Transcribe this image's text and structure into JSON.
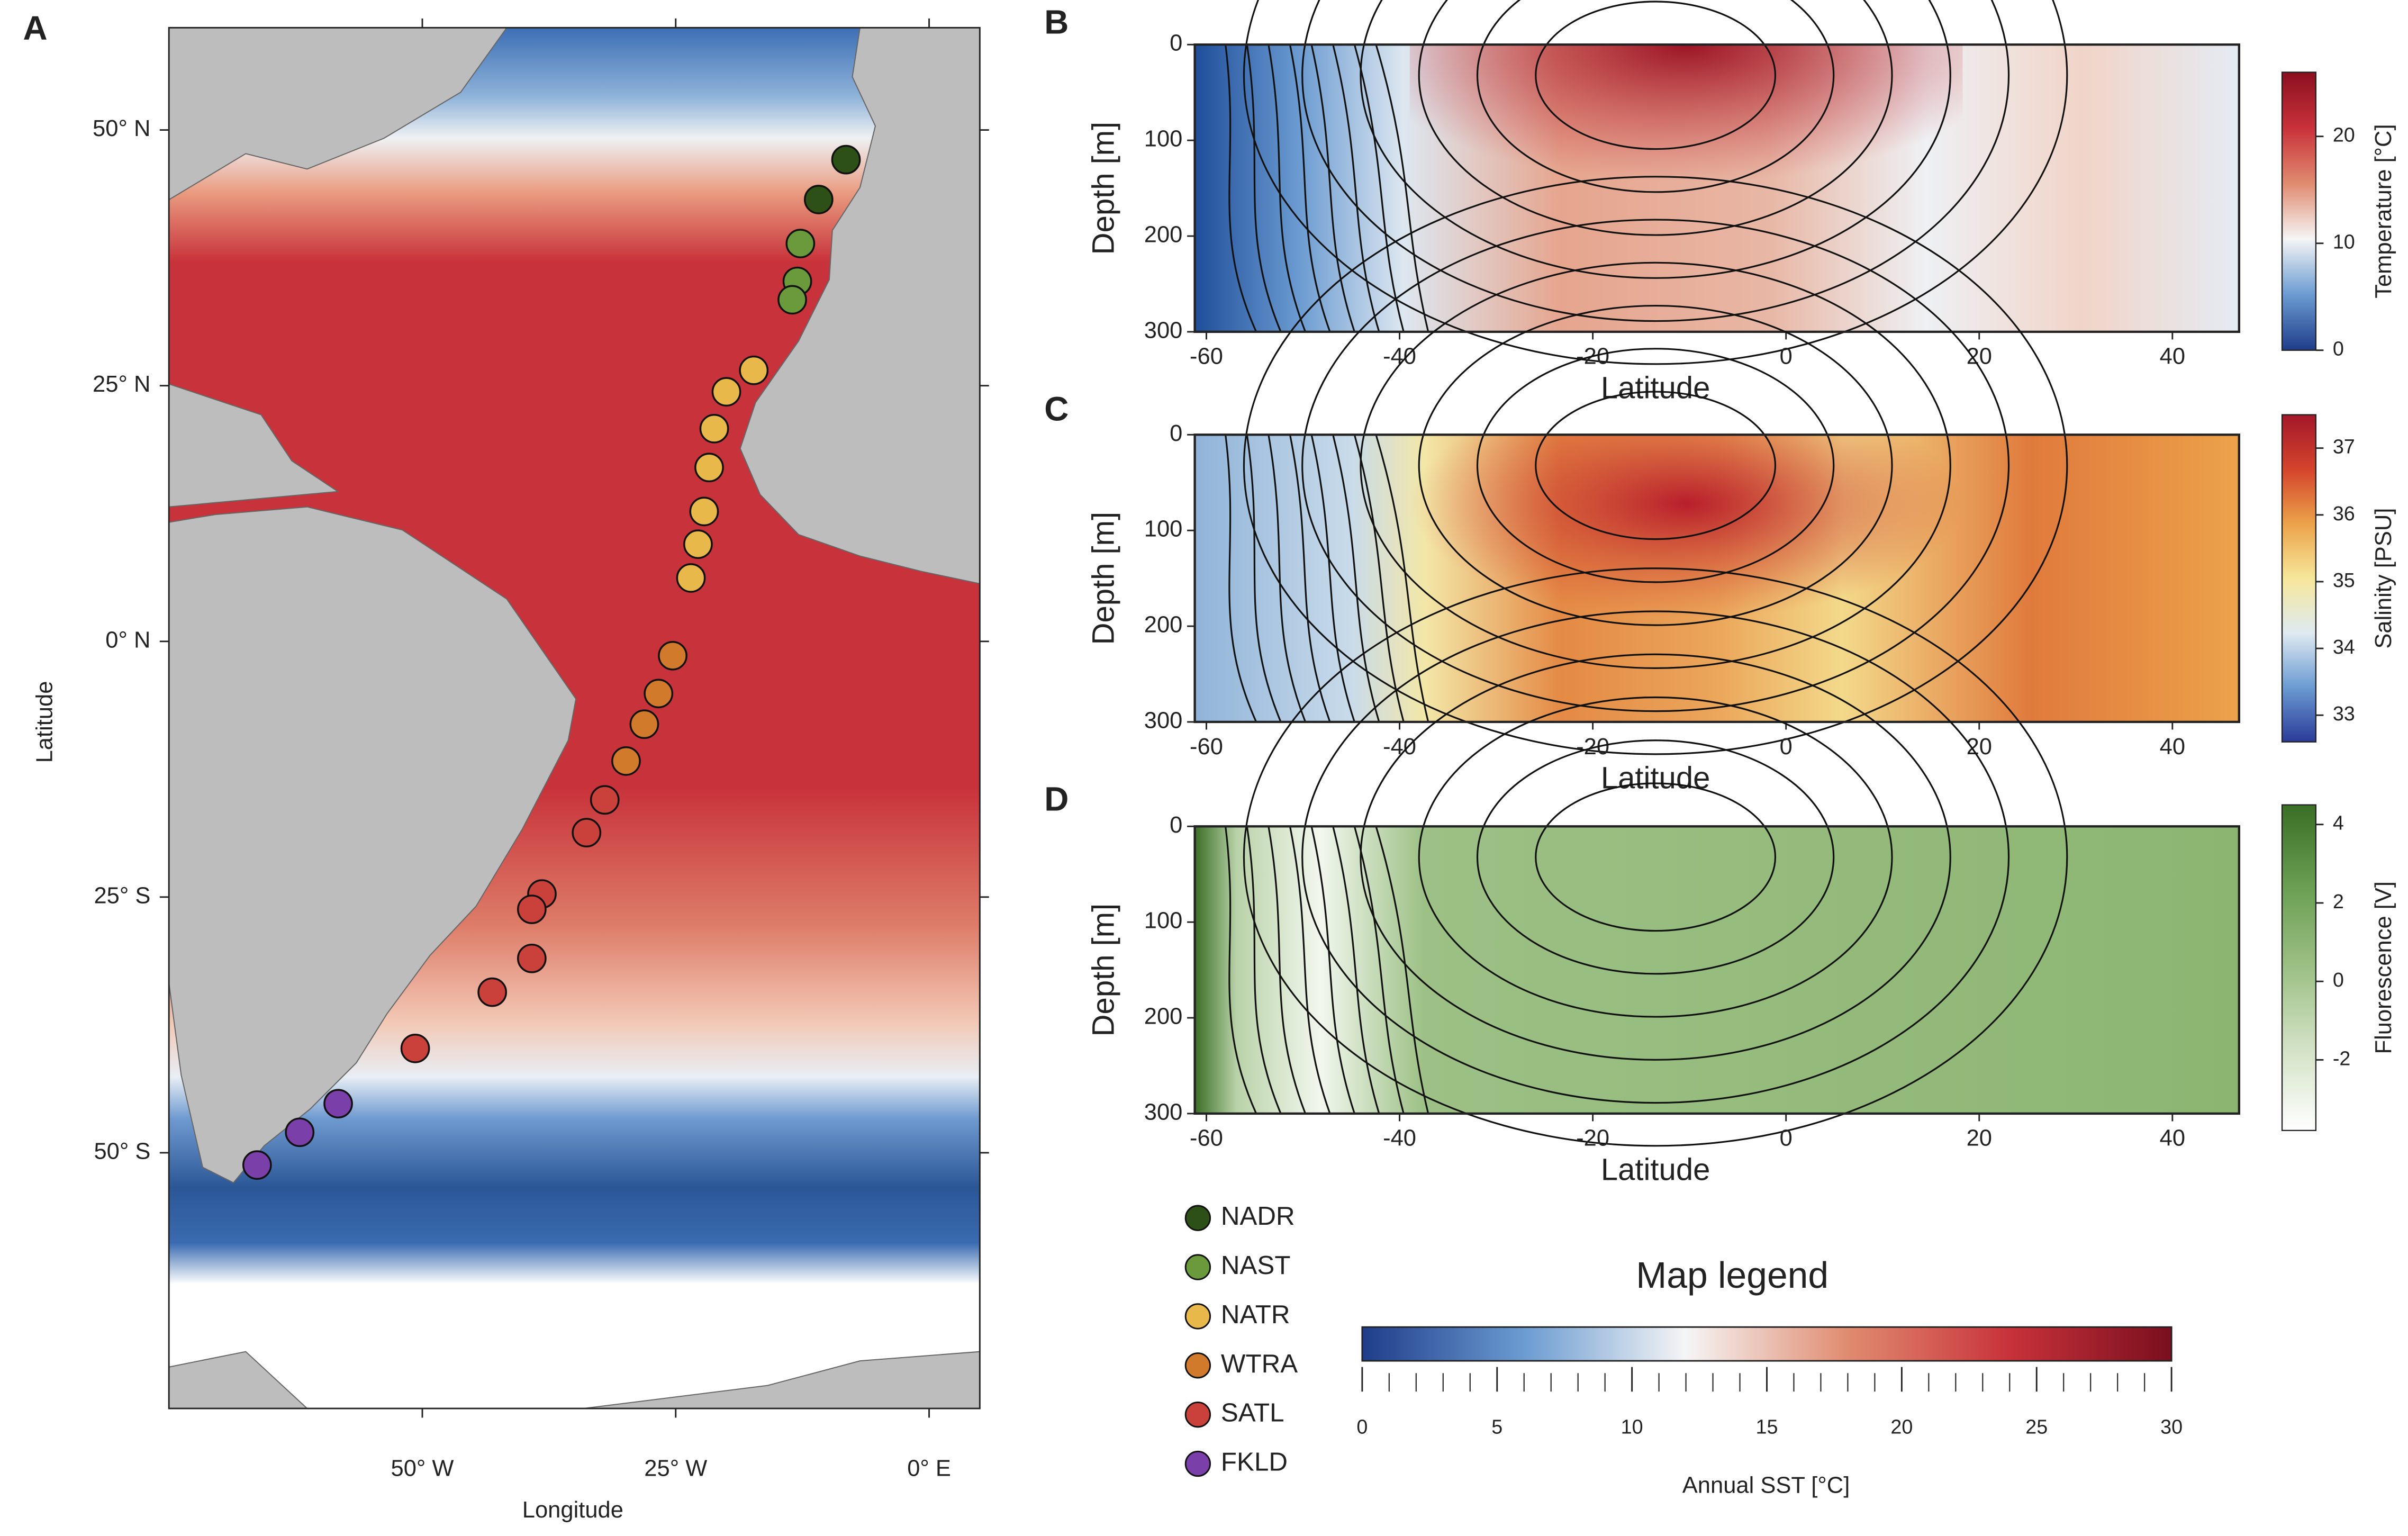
{
  "figure": {
    "panel_labels": [
      "A",
      "B",
      "C",
      "D"
    ]
  },
  "chart_data": [
    {
      "type": "scatter",
      "xlabel": "Longitude",
      "ylabel": "Latitude",
      "xlim": [
        -75,
        5
      ],
      "ylim": [
        -75,
        60
      ],
      "xticks": [
        {
          "value": -50,
          "label": "50° W"
        },
        {
          "value": -25,
          "label": "25° W"
        },
        {
          "value": 0,
          "label": "0° E"
        }
      ],
      "yticks": [
        {
          "value": 50,
          "label": "50° N"
        },
        {
          "value": 25,
          "label": "25° N"
        },
        {
          "value": 0,
          "label": "0° N"
        },
        {
          "value": -25,
          "label": "25° S"
        },
        {
          "value": -50,
          "label": "50° S"
        }
      ],
      "series": [
        {
          "name": "NADR",
          "color": "#2d5016",
          "x": [
            -8.2,
            -10.9
          ],
          "y": [
            47.1,
            43.2
          ]
        },
        {
          "name": "NAST",
          "color": "#6a9a3c",
          "x": [
            -12.7,
            -13,
            -13.5
          ],
          "y": [
            38.9,
            35.2,
            33.4
          ]
        },
        {
          "name": "NATR",
          "color": "#e8b84a",
          "x": [
            -17.3,
            -20,
            -21.2,
            -21.7,
            -22.2,
            -22.8,
            -23.5
          ],
          "y": [
            26.5,
            24.4,
            20.8,
            17.0,
            12.7,
            9.5,
            6.2
          ]
        },
        {
          "name": "WTRA",
          "color": "#d27a2c",
          "x": [
            -25.3,
            -26.7,
            -28.1,
            -29.9
          ],
          "y": [
            -1.4,
            -5.1,
            -8.1,
            -11.7
          ]
        },
        {
          "name": "SATL",
          "color": "#c9413a",
          "x": [
            -32,
            -33.8,
            -38.2,
            -39.2,
            -39.2,
            -43.1,
            -50.7
          ],
          "y": [
            -15.5,
            -18.7,
            -24.7,
            -26.2,
            -31,
            -34.3,
            -39.8
          ]
        },
        {
          "name": "FKLD",
          "color": "#7a3fa8",
          "x": [
            -58.3,
            -62.1,
            -66.3
          ],
          "y": [
            -45.2,
            -48,
            -51.2
          ]
        }
      ]
    },
    {
      "type": "contour",
      "xlabel": "Latitude",
      "ylabel": "Depth [m]",
      "xlim": [
        -61.2,
        46.9
      ],
      "ylim": [
        0,
        300
      ],
      "y_inverted": true,
      "xticks": [
        -60,
        -40,
        -20,
        0,
        20,
        40
      ],
      "yticks": [
        0,
        100,
        200,
        300
      ],
      "colorbar": {
        "label": "Temperature [°C]",
        "clim": [
          0,
          26
        ],
        "ticks": [
          0,
          10,
          20
        ],
        "colormap": [
          "#1f3d8a",
          "#6b9bd1",
          "#f5f5f5",
          "#e08b70",
          "#c8323a",
          "#8b0f1f"
        ]
      }
    },
    {
      "type": "contour",
      "xlabel": "Latitude",
      "ylabel": "Depth [m]",
      "xlim": [
        -61.2,
        46.9
      ],
      "ylim": [
        0,
        300
      ],
      "y_inverted": true,
      "xticks": [
        -60,
        -40,
        -20,
        0,
        20,
        40
      ],
      "yticks": [
        0,
        100,
        200,
        300
      ],
      "colorbar": {
        "label": "Salinity [PSU]",
        "clim": [
          32.6,
          37.5
        ],
        "ticks": [
          33,
          34,
          35,
          36,
          37
        ],
        "colormap": [
          "#2b3b99",
          "#6b9bd1",
          "#dfeaf2",
          "#f6e79a",
          "#eca24a",
          "#d4442c",
          "#a3172a"
        ]
      }
    },
    {
      "type": "contour",
      "xlabel": "Latitude",
      "ylabel": "Depth [m]",
      "xlim": [
        -61.2,
        46.9
      ],
      "ylim": [
        0,
        300
      ],
      "y_inverted": true,
      "xticks": [
        -60,
        -40,
        -20,
        0,
        20,
        40
      ],
      "yticks": [
        0,
        100,
        200,
        300
      ],
      "colorbar": {
        "label": "Fluorescence [V]",
        "clim": [
          -3.8,
          4.5
        ],
        "ticks": [
          -2,
          0,
          2,
          4
        ],
        "colormap": [
          "#ffffff",
          "#d3e2c5",
          "#9cc085",
          "#6a9e52",
          "#3a6e26"
        ]
      }
    },
    {
      "type": "colorbar",
      "title": "Map legend",
      "label": "Annual SST [°C]",
      "lim": [
        0,
        30
      ],
      "ticks": [
        0,
        5,
        10,
        15,
        20,
        25,
        30
      ],
      "minor_tick_step": 1,
      "colormap": [
        "#1f3d8a",
        "#6b9bd1",
        "#f5f5f5",
        "#e08b70",
        "#c8323a",
        "#7a0f1e"
      ]
    }
  ]
}
